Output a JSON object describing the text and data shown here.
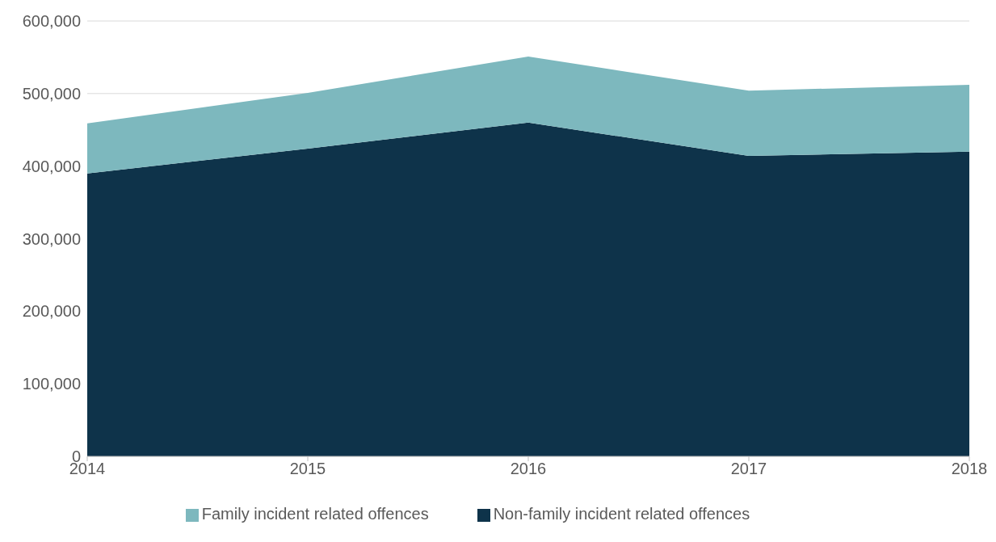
{
  "chart_data": {
    "type": "area",
    "stacked": true,
    "categories": [
      "2014",
      "2015",
      "2016",
      "2017",
      "2018"
    ],
    "series": [
      {
        "name": "Non-family incident related offences",
        "color": "#0e334a",
        "values": [
          390000,
          424000,
          460000,
          414000,
          420000
        ]
      },
      {
        "name": "Family incident related offences",
        "color": "#7db8be",
        "values": [
          69000,
          77000,
          91000,
          90000,
          92000
        ]
      }
    ],
    "ylim": [
      0,
      600000
    ],
    "yticks": [
      {
        "value": 0,
        "label": "0"
      },
      {
        "value": 100000,
        "label": "100,000"
      },
      {
        "value": 200000,
        "label": "200,000"
      },
      {
        "value": 300000,
        "label": "300,000"
      },
      {
        "value": 400000,
        "label": "400,000"
      },
      {
        "value": 500000,
        "label": "500,000"
      },
      {
        "value": 600000,
        "label": "600,000"
      }
    ],
    "grid": "y",
    "legend": "bottom"
  }
}
